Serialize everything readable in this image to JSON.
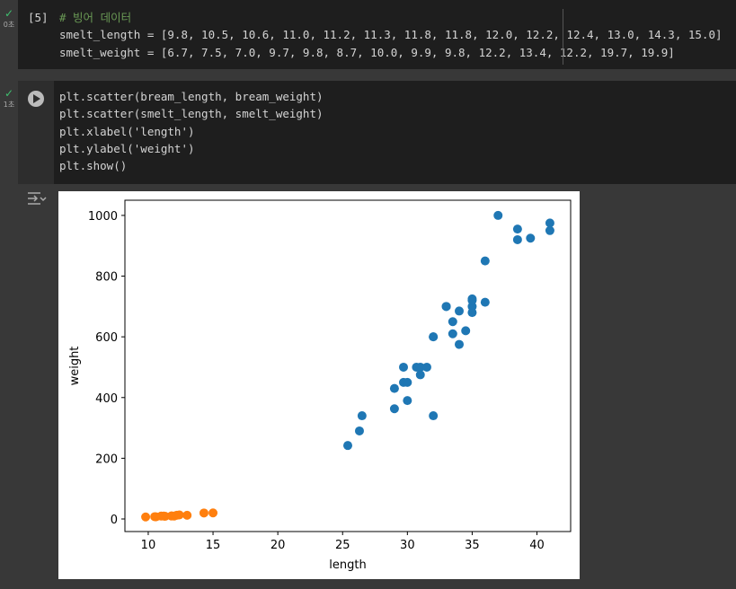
{
  "cells": [
    {
      "status": "0초",
      "prompt": "[5]",
      "lines": [
        "# 빙어 데이터",
        "smelt_length = [9.8, 10.5, 10.6, 11.0, 11.2, 11.3, 11.8, 11.8, 12.0, 12.2, 12.4, 13.0, 14.3, 15.0]",
        "smelt_weight = [6.7, 7.5, 7.0, 9.7, 9.8, 8.7, 10.0, 9.9, 9.8, 12.2, 13.4, 12.2, 19.7, 19.9]"
      ]
    },
    {
      "status": "1초",
      "lines": [
        "plt.scatter(bream_length, bream_weight)",
        "plt.scatter(smelt_length, smelt_weight)",
        "plt.xlabel('length')",
        "plt.ylabel('weight')",
        "plt.show()"
      ]
    }
  ],
  "chart_data": {
    "type": "scatter",
    "x_label": "length",
    "y_label": "weight",
    "series": [
      {
        "color": "#1f77b4",
        "x": [
          25.4,
          26.3,
          26.5,
          29.0,
          29.0,
          29.7,
          29.7,
          30.0,
          30.0,
          30.7,
          31.0,
          31.0,
          31.5,
          32.0,
          32.0,
          32.0,
          33.0,
          33.0,
          33.5,
          33.5,
          34.0,
          34.0,
          34.5,
          35.0,
          35.0,
          35.0,
          35.0,
          36.0,
          36.0,
          37.0,
          38.5,
          38.5,
          39.5,
          41.0,
          41.0
        ],
        "values": [
          242,
          290,
          340,
          363,
          430,
          450,
          500,
          390,
          450,
          500,
          475,
          500,
          500,
          340,
          600,
          600,
          700,
          700,
          610,
          650,
          575,
          685,
          620,
          680,
          700,
          725,
          720,
          714,
          850,
          1000,
          920,
          955,
          925,
          975,
          950
        ]
      },
      {
        "color": "#ff7f0e",
        "x": [
          9.8,
          10.5,
          10.6,
          11.0,
          11.2,
          11.3,
          11.8,
          11.8,
          12.0,
          12.2,
          12.4,
          13.0,
          14.3,
          15.0
        ],
        "values": [
          6.7,
          7.5,
          7.0,
          9.7,
          9.8,
          8.7,
          10.0,
          9.9,
          9.8,
          12.2,
          13.4,
          12.2,
          19.7,
          19.9
        ]
      }
    ],
    "xlim": [
      8.2,
      42.6
    ],
    "xticks": [
      10,
      15,
      20,
      25,
      30,
      35,
      40
    ],
    "ylim": [
      -41.4,
      1050
    ],
    "yticks": [
      0,
      200,
      400,
      600,
      800,
      1000
    ]
  }
}
